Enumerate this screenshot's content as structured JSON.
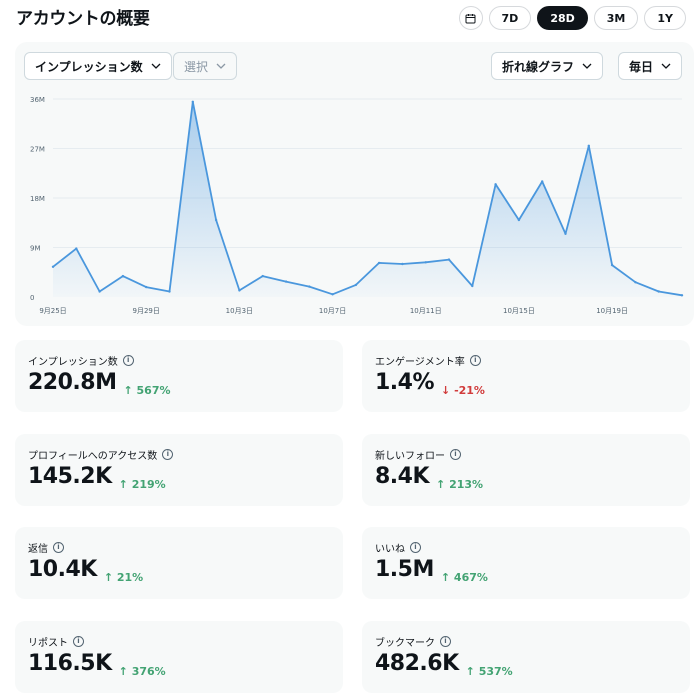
{
  "header": {
    "title": "アカウントの概要"
  },
  "range": {
    "calendar_icon": "calendar-icon",
    "options": [
      "7D",
      "28D",
      "3M",
      "1Y"
    ],
    "selected": "28D"
  },
  "chart_controls": {
    "metric": "インプレッション数",
    "compare": "選択",
    "chart_type": "折れ線グラフ",
    "interval": "毎日"
  },
  "chart_data": {
    "type": "area",
    "series": [
      {
        "values": [
          5.5,
          8.8,
          1.0,
          3.8,
          1.8,
          1.0,
          35.5,
          14.0,
          1.2,
          3.8,
          2.8,
          1.9,
          0.5,
          2.2,
          6.2,
          6.0,
          6.3,
          6.8,
          2.0,
          20.5,
          14.0,
          21.0,
          11.5,
          27.5,
          5.8,
          2.7,
          1.0,
          0.3
        ]
      }
    ],
    "x_tick_labels": [
      "9月25日",
      "9月29日",
      "10月3日",
      "10月7日",
      "10月11日",
      "10月15日",
      "10月19日"
    ],
    "x_tick_indices": [
      0,
      4,
      8,
      12,
      16,
      20,
      24
    ],
    "y_ticks": [
      0,
      9,
      18,
      27,
      36
    ],
    "y_tick_labels": [
      "0",
      "9M",
      "18M",
      "27M",
      "36M"
    ],
    "ylim": [
      0,
      36
    ],
    "grid": true,
    "line_color": "#4a97dd"
  },
  "metrics": [
    {
      "label": "インプレッション数",
      "value": "220.8M",
      "change": "567%",
      "direction": "up"
    },
    {
      "label": "エンゲージメント率",
      "value": "1.4%",
      "change": "-21%",
      "direction": "down"
    },
    {
      "label": "プロフィールへのアクセス数",
      "value": "145.2K",
      "change": "219%",
      "direction": "up"
    },
    {
      "label": "新しいフォロー",
      "value": "8.4K",
      "change": "213%",
      "direction": "up"
    },
    {
      "label": "返信",
      "value": "10.4K",
      "change": "21%",
      "direction": "up"
    },
    {
      "label": "いいね",
      "value": "1.5M",
      "change": "467%",
      "direction": "up"
    },
    {
      "label": "リポスト",
      "value": "116.5K",
      "change": "376%",
      "direction": "up"
    },
    {
      "label": "ブックマーク",
      "value": "482.6K",
      "change": "537%",
      "direction": "up"
    }
  ],
  "colors": {
    "up": "#43a373",
    "down": "#d13c3c",
    "panel": "#f7f9f9"
  }
}
